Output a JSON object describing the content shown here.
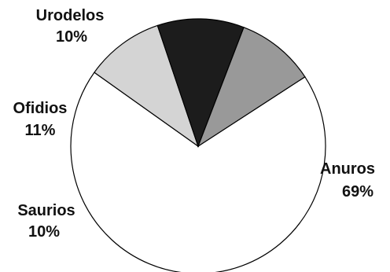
{
  "chart_data": {
    "type": "pie",
    "title": "",
    "categories": [
      "Anuros",
      "Saurios",
      "Ofidios",
      "Urodelos"
    ],
    "values": [
      69,
      10,
      11,
      10
    ],
    "labels": [
      "Anuros",
      "Saurios",
      "Ofidios",
      "Urodelos"
    ],
    "value_labels": [
      "69%",
      "10%",
      "11%",
      "10%"
    ],
    "colors": [
      "#ffffff",
      "#d4d4d4",
      "#1c1c1c",
      "#999999"
    ],
    "start_angle_deg": 57,
    "direction": "clockwise",
    "legend": "none",
    "slice_stroke": "#000000"
  }
}
